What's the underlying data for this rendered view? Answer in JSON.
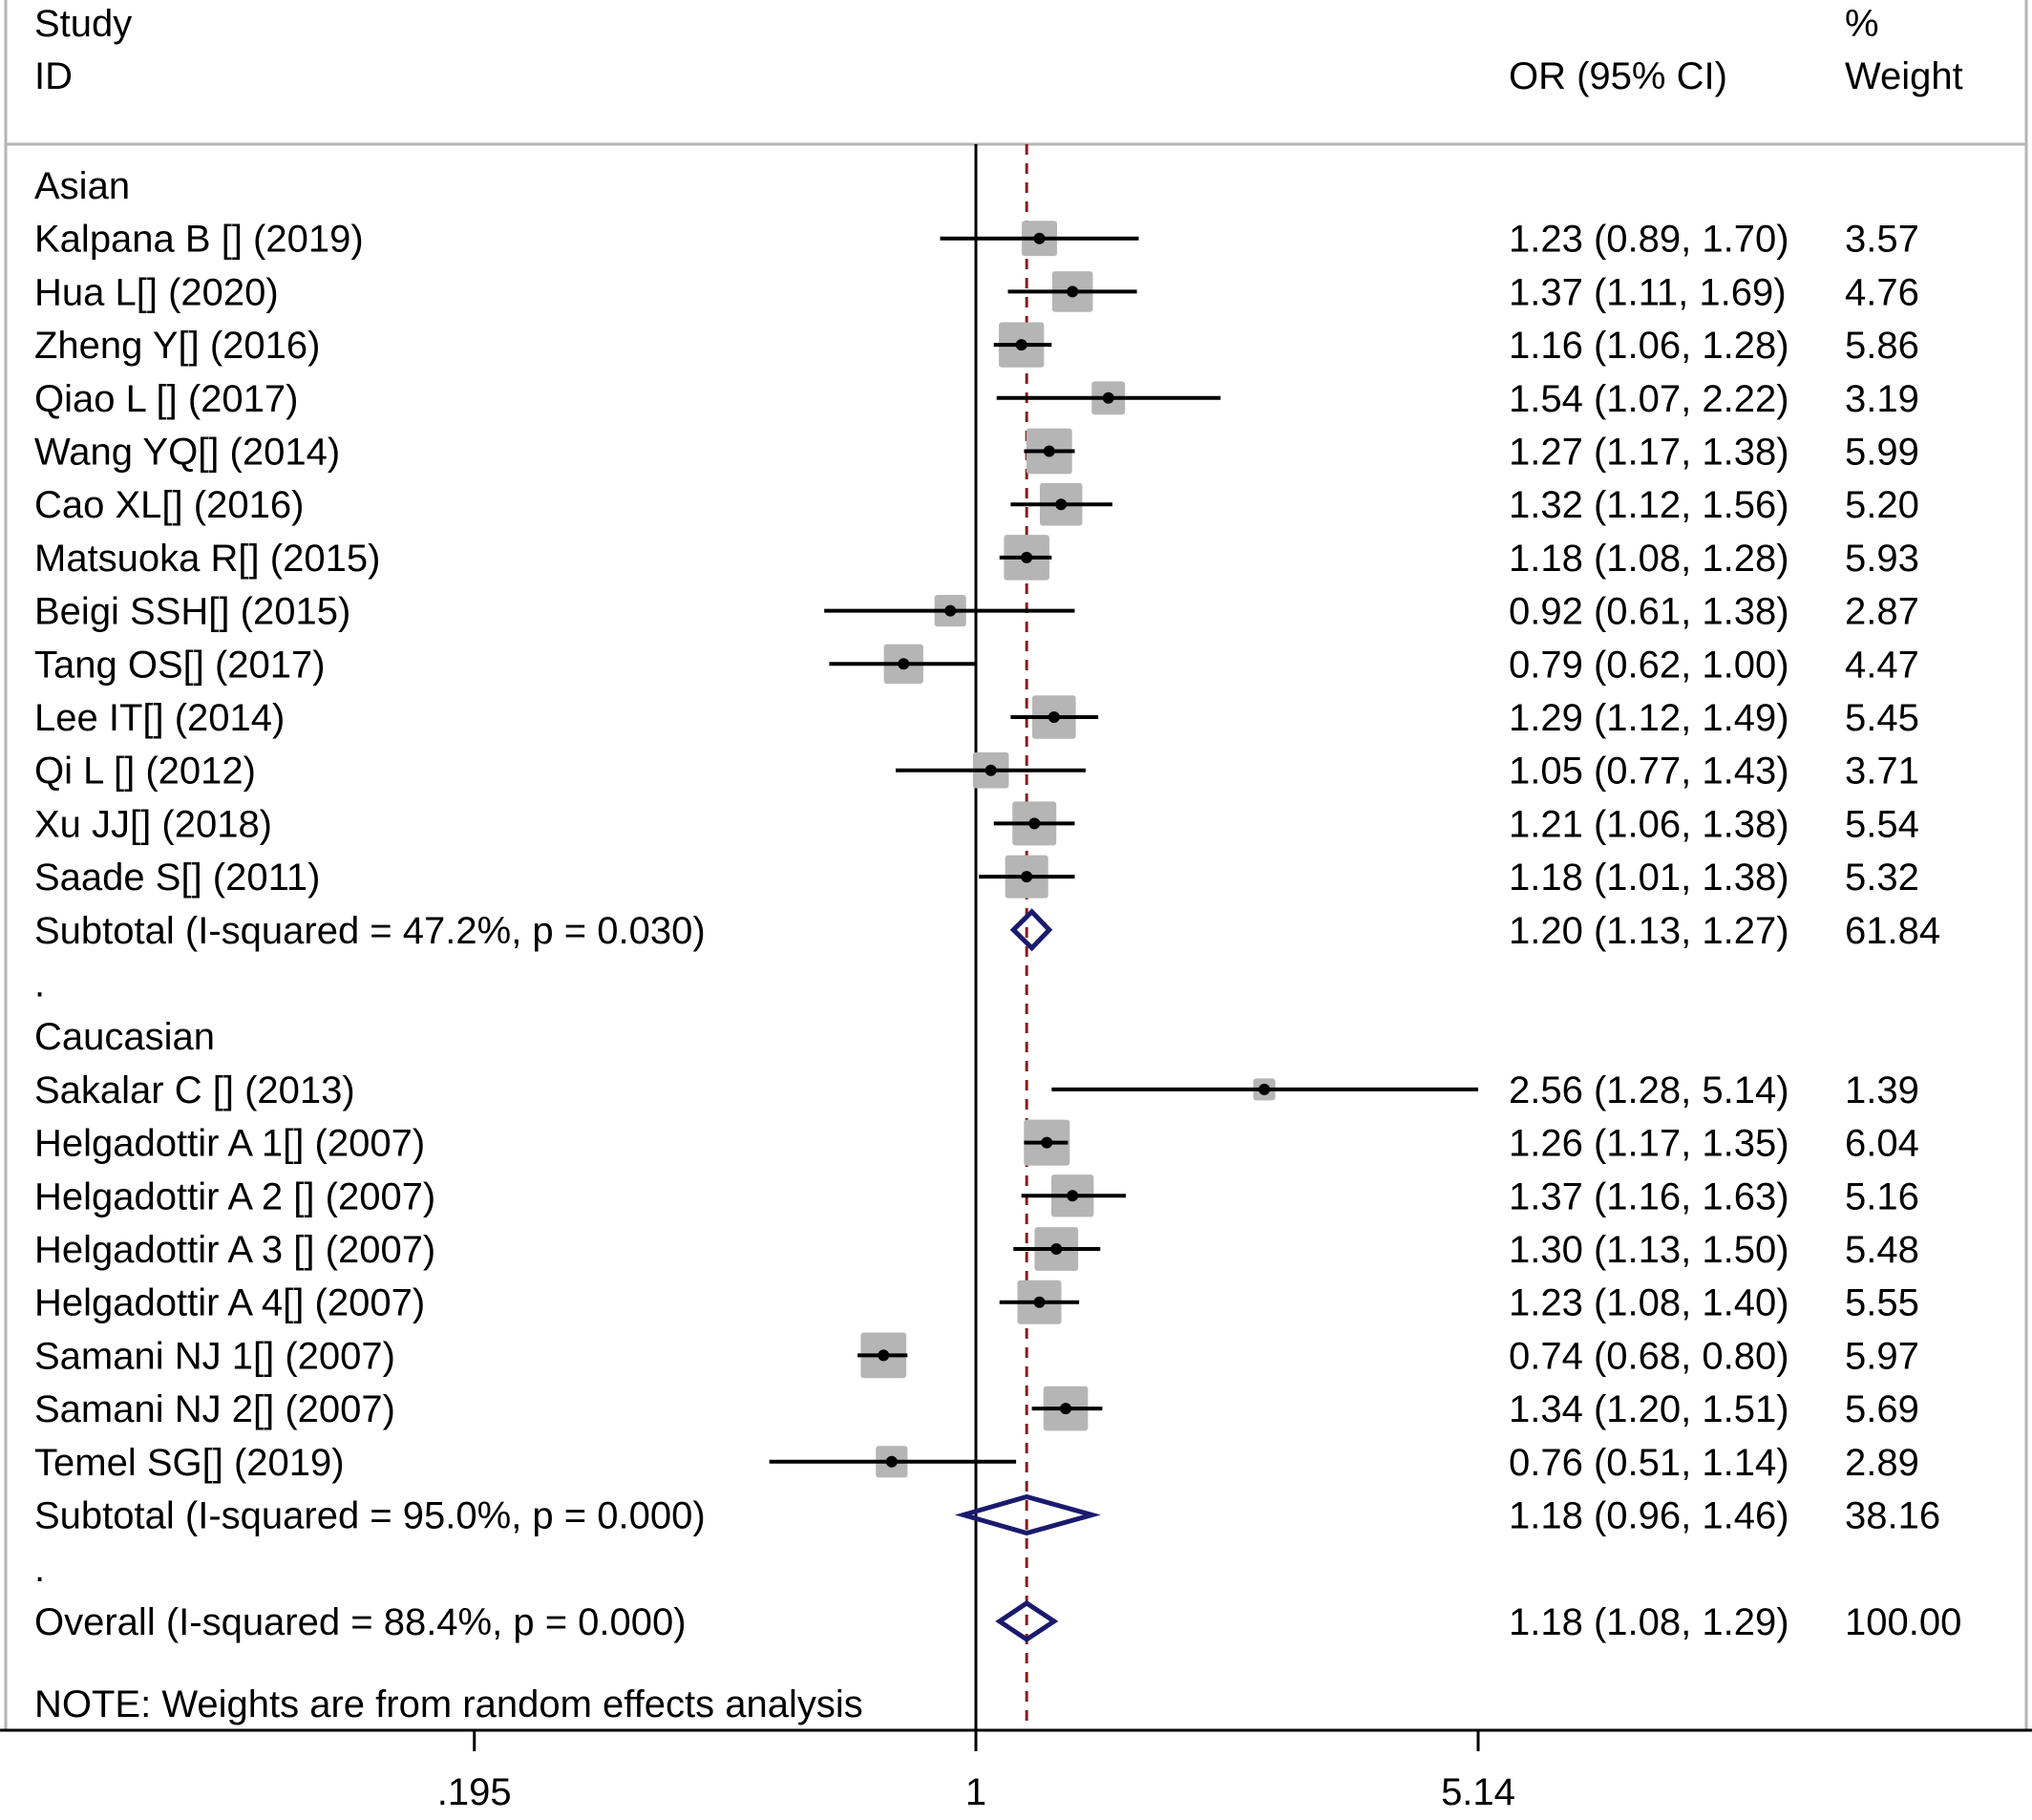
{
  "chart_data": {
    "type": "forest",
    "header": {
      "study": "Study",
      "id": "ID",
      "or_ci": "OR (95% CI)",
      "pct": "%",
      "weight": "Weight"
    },
    "rows": [
      {
        "kind": "group",
        "label": "Asian"
      },
      {
        "kind": "study",
        "label": "Kalpana B [] (2019)",
        "or": 1.23,
        "lo": 0.89,
        "hi": 1.7,
        "text": "1.23 (0.89, 1.70)",
        "weight": 3.57,
        "weight_text": "3.57"
      },
      {
        "kind": "study",
        "label": "Hua L[] (2020)",
        "or": 1.37,
        "lo": 1.11,
        "hi": 1.69,
        "text": "1.37 (1.11, 1.69)",
        "weight": 4.76,
        "weight_text": "4.76"
      },
      {
        "kind": "study",
        "label": "Zheng Y[] (2016)",
        "or": 1.16,
        "lo": 1.06,
        "hi": 1.28,
        "text": "1.16 (1.06, 1.28)",
        "weight": 5.86,
        "weight_text": "5.86"
      },
      {
        "kind": "study",
        "label": "Qiao L [] (2017)",
        "or": 1.54,
        "lo": 1.07,
        "hi": 2.22,
        "text": "1.54 (1.07, 2.22)",
        "weight": 3.19,
        "weight_text": "3.19"
      },
      {
        "kind": "study",
        "label": "Wang YQ[] (2014)",
        "or": 1.27,
        "lo": 1.17,
        "hi": 1.38,
        "text": "1.27 (1.17, 1.38)",
        "weight": 5.99,
        "weight_text": "5.99"
      },
      {
        "kind": "study",
        "label": "Cao XL[] (2016)",
        "or": 1.32,
        "lo": 1.12,
        "hi": 1.56,
        "text": "1.32 (1.12, 1.56)",
        "weight": 5.2,
        "weight_text": "5.20"
      },
      {
        "kind": "study",
        "label": "Matsuoka R[] (2015)",
        "or": 1.18,
        "lo": 1.08,
        "hi": 1.28,
        "text": "1.18 (1.08, 1.28)",
        "weight": 5.93,
        "weight_text": "5.93"
      },
      {
        "kind": "study",
        "label": "Beigi SSH[]  (2015)",
        "or": 0.92,
        "lo": 0.61,
        "hi": 1.38,
        "text": "0.92 (0.61, 1.38)",
        "weight": 2.87,
        "weight_text": "2.87"
      },
      {
        "kind": "study",
        "label": "Tang OS[] (2017)",
        "or": 0.79,
        "lo": 0.62,
        "hi": 1.0,
        "text": "0.79 (0.62, 1.00)",
        "weight": 4.47,
        "weight_text": "4.47"
      },
      {
        "kind": "study",
        "label": "Lee IT[] (2014)",
        "or": 1.29,
        "lo": 1.12,
        "hi": 1.49,
        "text": "1.29 (1.12, 1.49)",
        "weight": 5.45,
        "weight_text": "5.45"
      },
      {
        "kind": "study",
        "label": "Qi L [] (2012)",
        "or": 1.05,
        "lo": 0.77,
        "hi": 1.43,
        "text": "1.05 (0.77, 1.43)",
        "weight": 3.71,
        "weight_text": "3.71"
      },
      {
        "kind": "study",
        "label": "Xu JJ[] (2018)",
        "or": 1.21,
        "lo": 1.06,
        "hi": 1.38,
        "text": "1.21 (1.06, 1.38)",
        "weight": 5.54,
        "weight_text": "5.54"
      },
      {
        "kind": "study",
        "label": "Saade S[] (2011)",
        "or": 1.18,
        "lo": 1.01,
        "hi": 1.38,
        "text": "1.18 (1.01, 1.38)",
        "weight": 5.32,
        "weight_text": "5.32"
      },
      {
        "kind": "subtotal",
        "label": "Subtotal  (I-squared = 47.2%, p = 0.030)",
        "or": 1.2,
        "lo": 1.13,
        "hi": 1.27,
        "text": "1.20 (1.13, 1.27)",
        "weight": 61.84,
        "weight_text": "61.84"
      },
      {
        "kind": "spacer",
        "label": "."
      },
      {
        "kind": "group",
        "label": "Caucasian"
      },
      {
        "kind": "study",
        "label": "Sakalar C [] (2013)",
        "or": 2.56,
        "lo": 1.28,
        "hi": 5.14,
        "text": "2.56 (1.28, 5.14)",
        "weight": 1.39,
        "weight_text": "1.39"
      },
      {
        "kind": "study",
        "label": "Helgadottir A 1[] (2007)",
        "or": 1.26,
        "lo": 1.17,
        "hi": 1.35,
        "text": "1.26 (1.17, 1.35)",
        "weight": 6.04,
        "weight_text": "6.04"
      },
      {
        "kind": "study",
        "label": "Helgadottir A 2 [] (2007)",
        "or": 1.37,
        "lo": 1.16,
        "hi": 1.63,
        "text": "1.37 (1.16, 1.63)",
        "weight": 5.16,
        "weight_text": "5.16"
      },
      {
        "kind": "study",
        "label": "Helgadottir A 3 [] (2007)",
        "or": 1.3,
        "lo": 1.13,
        "hi": 1.5,
        "text": "1.30 (1.13, 1.50)",
        "weight": 5.48,
        "weight_text": "5.48"
      },
      {
        "kind": "study",
        "label": "Helgadottir A 4[] (2007)",
        "or": 1.23,
        "lo": 1.08,
        "hi": 1.4,
        "text": "1.23 (1.08, 1.40)",
        "weight": 5.55,
        "weight_text": "5.55"
      },
      {
        "kind": "study",
        "label": "Samani NJ 1[] (2007)",
        "or": 0.74,
        "lo": 0.68,
        "hi": 0.8,
        "text": "0.74 (0.68, 0.80)",
        "weight": 5.97,
        "weight_text": "5.97"
      },
      {
        "kind": "study",
        "label": "Samani NJ 2[] (2007)",
        "or": 1.34,
        "lo": 1.2,
        "hi": 1.51,
        "text": "1.34 (1.20, 1.51)",
        "weight": 5.69,
        "weight_text": "5.69"
      },
      {
        "kind": "study",
        "label": "Temel SG[] (2019)",
        "or": 0.76,
        "lo": 0.51,
        "hi": 1.14,
        "text": "0.76 (0.51, 1.14)",
        "weight": 2.89,
        "weight_text": "2.89"
      },
      {
        "kind": "subtotal",
        "label": "Subtotal  (I-squared = 95.0%, p = 0.000)",
        "or": 1.18,
        "lo": 0.96,
        "hi": 1.46,
        "text": "1.18 (0.96, 1.46)",
        "weight": 38.16,
        "weight_text": "38.16"
      },
      {
        "kind": "spacer",
        "label": "."
      },
      {
        "kind": "overall",
        "label": "Overall  (I-squared = 88.4%, p = 0.000)",
        "or": 1.18,
        "lo": 1.08,
        "hi": 1.29,
        "text": "1.18 (1.08, 1.29)",
        "weight": 100.0,
        "weight_text": "100.00"
      }
    ],
    "note": "NOTE: Weights are from random effects analysis",
    "x_scale": "log",
    "x_ticks": [
      0.195,
      1,
      5.14
    ],
    "x_tick_labels": [
      ".195",
      "1",
      "5.14"
    ],
    "null_line": 1,
    "overall_line": 1.18,
    "colors": {
      "text": "#000000",
      "box": "#b5b5b5",
      "diamond": "#1a1a6e",
      "overall_line": "#8b1a1a",
      "frame": "#b5b5b5"
    }
  }
}
